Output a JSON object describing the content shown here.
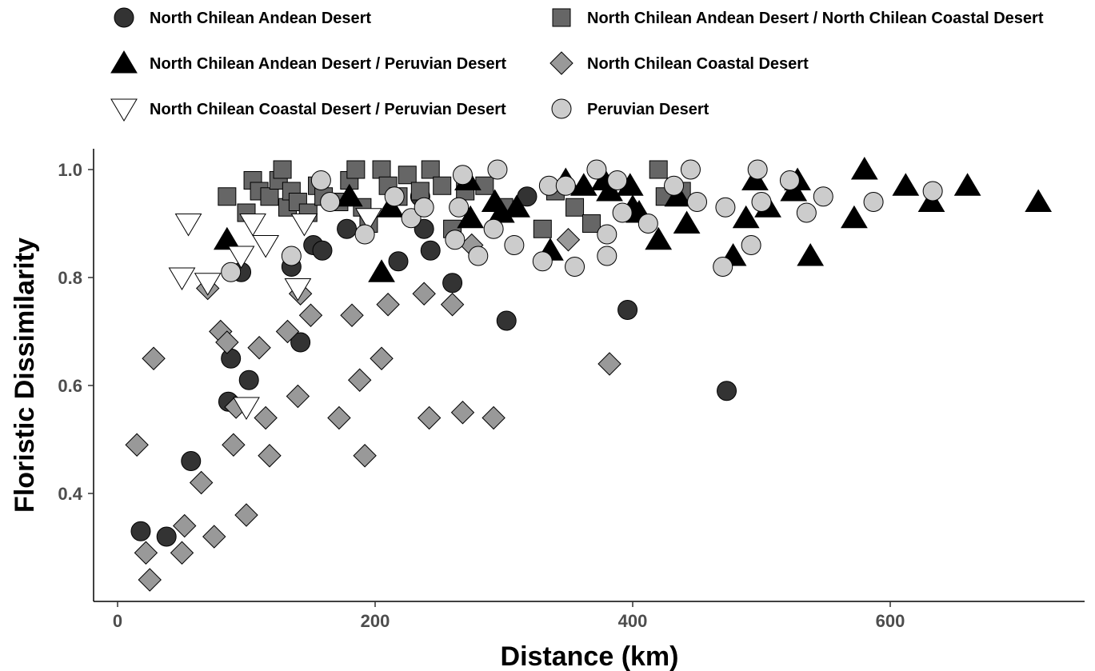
{
  "chart_data": {
    "type": "scatter",
    "title": "",
    "xlabel": "Distance (km)",
    "ylabel": "Floristic Dissimilarity",
    "xlim": [
      -10,
      740
    ],
    "ylim": [
      0.2,
      1.04
    ],
    "xticks": [
      0,
      200,
      400,
      600
    ],
    "xtick_labels": [
      "0",
      "200",
      "400",
      "600"
    ],
    "yticks": [
      0.4,
      0.6,
      0.8,
      1.0
    ],
    "ytick_labels": [
      "0.4",
      "0.6",
      "0.8",
      "1.0"
    ],
    "grid": false,
    "legend_position": "top",
    "series": [
      {
        "name": "North Chilean Andean Desert",
        "marker": "circle",
        "fill": "#333333",
        "points": [
          [
            18,
            0.33
          ],
          [
            38,
            0.32
          ],
          [
            57,
            0.46
          ],
          [
            86,
            0.57
          ],
          [
            88,
            0.65
          ],
          [
            96,
            0.81
          ],
          [
            102,
            0.61
          ],
          [
            135,
            0.82
          ],
          [
            142,
            0.68
          ],
          [
            152,
            0.86
          ],
          [
            159,
            0.85
          ],
          [
            178,
            0.89
          ],
          [
            218,
            0.83
          ],
          [
            235,
            0.95
          ],
          [
            238,
            0.89
          ],
          [
            243,
            0.85
          ],
          [
            260,
            0.79
          ],
          [
            302,
            0.72
          ],
          [
            318,
            0.95
          ],
          [
            396,
            0.74
          ],
          [
            473,
            0.59
          ]
        ]
      },
      {
        "name": "North Chilean Andean Desert / North Chilean Coastal Desert",
        "marker": "square",
        "fill": "#666666",
        "points": [
          [
            85,
            0.95
          ],
          [
            100,
            0.92
          ],
          [
            105,
            0.98
          ],
          [
            110,
            0.96
          ],
          [
            118,
            0.95
          ],
          [
            125,
            0.98
          ],
          [
            128,
            1.0
          ],
          [
            132,
            0.93
          ],
          [
            135,
            0.96
          ],
          [
            140,
            0.94
          ],
          [
            148,
            0.92
          ],
          [
            155,
            0.97
          ],
          [
            160,
            0.95
          ],
          [
            172,
            0.94
          ],
          [
            180,
            0.98
          ],
          [
            185,
            1.0
          ],
          [
            190,
            0.93
          ],
          [
            195,
            0.9
          ],
          [
            205,
            1.0
          ],
          [
            210,
            0.97
          ],
          [
            218,
            0.95
          ],
          [
            225,
            0.99
          ],
          [
            235,
            0.96
          ],
          [
            243,
            1.0
          ],
          [
            252,
            0.97
          ],
          [
            260,
            0.89
          ],
          [
            270,
            0.96
          ],
          [
            285,
            0.97
          ],
          [
            300,
            0.93
          ],
          [
            330,
            0.89
          ],
          [
            340,
            0.96
          ],
          [
            355,
            0.93
          ],
          [
            368,
            0.9
          ],
          [
            420,
            1.0
          ],
          [
            425,
            0.95
          ],
          [
            438,
            0.96
          ]
        ]
      },
      {
        "name": "North Chilean Andean Desert / Peruvian Desert",
        "marker": "triangle-up",
        "fill": "#000000",
        "points": [
          [
            85,
            0.87
          ],
          [
            180,
            0.95
          ],
          [
            205,
            0.81
          ],
          [
            212,
            0.93
          ],
          [
            272,
            0.98
          ],
          [
            274,
            0.91
          ],
          [
            293,
            0.94
          ],
          [
            298,
            0.92
          ],
          [
            310,
            0.93
          ],
          [
            336,
            0.85
          ],
          [
            348,
            0.98
          ],
          [
            362,
            0.97
          ],
          [
            378,
            0.98
          ],
          [
            382,
            0.96
          ],
          [
            398,
            0.97
          ],
          [
            400,
            0.93
          ],
          [
            405,
            0.92
          ],
          [
            420,
            0.87
          ],
          [
            435,
            0.95
          ],
          [
            442,
            0.9
          ],
          [
            478,
            0.84
          ],
          [
            488,
            0.91
          ],
          [
            495,
            0.98
          ],
          [
            505,
            0.93
          ],
          [
            525,
            0.96
          ],
          [
            528,
            0.98
          ],
          [
            538,
            0.84
          ],
          [
            572,
            0.91
          ],
          [
            580,
            1.0
          ],
          [
            612,
            0.97
          ],
          [
            632,
            0.94
          ],
          [
            660,
            0.97
          ],
          [
            715,
            0.94
          ]
        ]
      },
      {
        "name": "North Chilean Coastal Desert",
        "marker": "diamond",
        "fill": "#999999",
        "points": [
          [
            15,
            0.49
          ],
          [
            22,
            0.29
          ],
          [
            25,
            0.24
          ],
          [
            28,
            0.65
          ],
          [
            50,
            0.29
          ],
          [
            52,
            0.34
          ],
          [
            65,
            0.42
          ],
          [
            70,
            0.78
          ],
          [
            75,
            0.32
          ],
          [
            80,
            0.7
          ],
          [
            85,
            0.68
          ],
          [
            90,
            0.49
          ],
          [
            92,
            0.56
          ],
          [
            100,
            0.36
          ],
          [
            110,
            0.67
          ],
          [
            115,
            0.54
          ],
          [
            118,
            0.47
          ],
          [
            132,
            0.7
          ],
          [
            140,
            0.58
          ],
          [
            142,
            0.77
          ],
          [
            150,
            0.73
          ],
          [
            172,
            0.54
          ],
          [
            182,
            0.73
          ],
          [
            188,
            0.61
          ],
          [
            192,
            0.47
          ],
          [
            205,
            0.65
          ],
          [
            210,
            0.75
          ],
          [
            238,
            0.77
          ],
          [
            242,
            0.54
          ],
          [
            260,
            0.75
          ],
          [
            268,
            0.55
          ],
          [
            275,
            0.86
          ],
          [
            292,
            0.54
          ],
          [
            350,
            0.87
          ],
          [
            382,
            0.64
          ]
        ]
      },
      {
        "name": "North Chilean Coastal Desert / Peruvian Desert",
        "marker": "triangle-down",
        "fill": "#ffffff",
        "points": [
          [
            55,
            0.9
          ],
          [
            50,
            0.8
          ],
          [
            70,
            0.79
          ],
          [
            96,
            0.84
          ],
          [
            100,
            0.56
          ],
          [
            105,
            0.9
          ],
          [
            115,
            0.86
          ],
          [
            140,
            0.78
          ],
          [
            145,
            0.9
          ],
          [
            195,
            0.91
          ]
        ]
      },
      {
        "name": "Peruvian Desert",
        "marker": "circle",
        "fill": "#cccccc",
        "points": [
          [
            88,
            0.81
          ],
          [
            135,
            0.84
          ],
          [
            158,
            0.98
          ],
          [
            165,
            0.94
          ],
          [
            192,
            0.88
          ],
          [
            215,
            0.95
          ],
          [
            228,
            0.91
          ],
          [
            238,
            0.93
          ],
          [
            262,
            0.87
          ],
          [
            265,
            0.93
          ],
          [
            268,
            0.99
          ],
          [
            280,
            0.84
          ],
          [
            292,
            0.89
          ],
          [
            295,
            1.0
          ],
          [
            308,
            0.86
          ],
          [
            330,
            0.83
          ],
          [
            335,
            0.97
          ],
          [
            348,
            0.97
          ],
          [
            355,
            0.82
          ],
          [
            372,
            1.0
          ],
          [
            380,
            0.88
          ],
          [
            380,
            0.84
          ],
          [
            388,
            0.98
          ],
          [
            392,
            0.92
          ],
          [
            412,
            0.9
          ],
          [
            432,
            0.97
          ],
          [
            445,
            1.0
          ],
          [
            450,
            0.94
          ],
          [
            470,
            0.82
          ],
          [
            472,
            0.93
          ],
          [
            492,
            0.86
          ],
          [
            497,
            1.0
          ],
          [
            500,
            0.94
          ],
          [
            522,
            0.98
          ],
          [
            535,
            0.92
          ],
          [
            548,
            0.95
          ],
          [
            587,
            0.94
          ],
          [
            633,
            0.96
          ]
        ]
      }
    ]
  }
}
